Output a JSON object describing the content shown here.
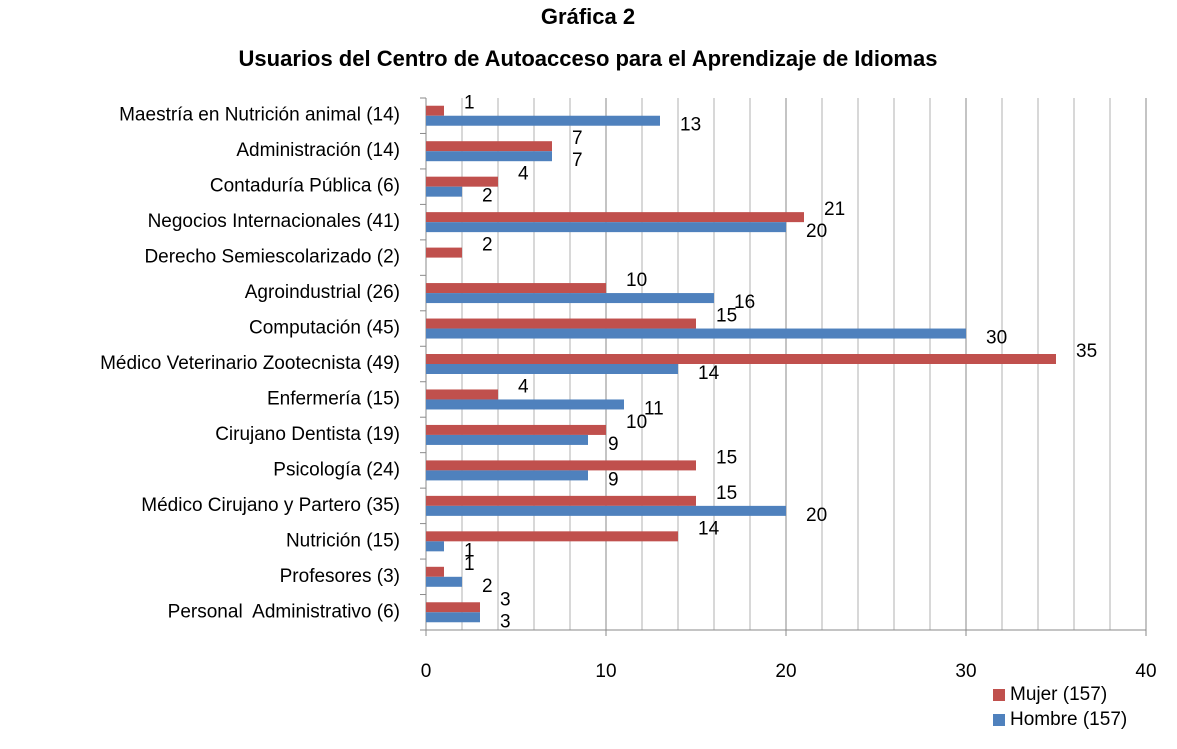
{
  "chart_data": {
    "type": "hbar",
    "title": "Gráfica 2",
    "subtitle": "Usuarios del Centro de Autoacceso para el Aprendizaje de Idiomas",
    "categories": [
      "Maestría en Nutrición animal (14)",
      "Administración (14)",
      "Contaduría Pública (6)",
      "Negocios Internacionales (41)",
      "Derecho Semiescolarizado (2)",
      "Agroindustrial (26)",
      "Computación (45)",
      "Médico Veterinario Zootecnista (49)",
      "Enfermería (15)",
      "Cirujano Dentista (19)",
      "Psicología (24)",
      "Médico Cirujano y Partero (35)",
      "Nutrición (15)",
      "Profesores (3)",
      "Personal  Administrativo (6)"
    ],
    "series": [
      {
        "name": "Mujer (157)",
        "color": "#c0504d",
        "values": [
          1,
          7,
          4,
          21,
          2,
          10,
          15,
          35,
          4,
          10,
          15,
          15,
          14,
          1,
          3
        ]
      },
      {
        "name": "Hombre (157)",
        "color": "#4f81bd",
        "values": [
          13,
          7,
          2,
          20,
          null,
          16,
          30,
          14,
          11,
          9,
          9,
          20,
          1,
          2,
          3
        ]
      }
    ],
    "xlim": [
      0,
      40
    ],
    "xticks": [
      0,
      10,
      20,
      30,
      40
    ],
    "minor_grid": [
      2,
      4,
      6,
      8,
      12,
      14,
      16,
      18,
      22,
      24,
      26,
      28,
      32,
      34,
      36,
      38
    ],
    "grid": true,
    "legend": "bottom-right"
  }
}
